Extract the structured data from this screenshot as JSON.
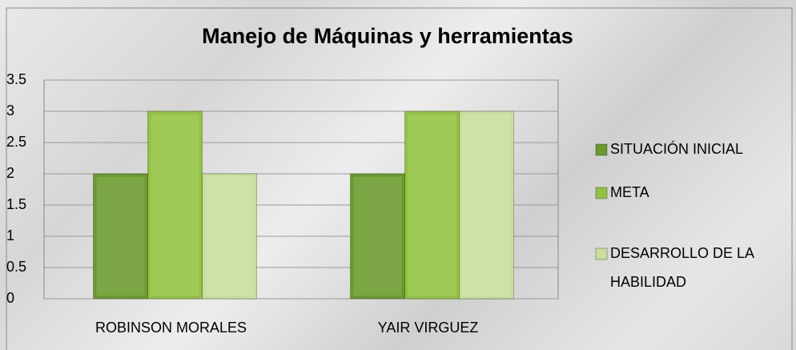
{
  "chart_data": {
    "type": "bar",
    "title": "Manejo de Máquinas y herramientas",
    "categories": [
      "ROBINSON  MORALES",
      "YAIR  VIRGUEZ"
    ],
    "series": [
      {
        "name": "SITUACIÓN INICIAL",
        "color": "#6a9a2c",
        "values": [
          2,
          2
        ]
      },
      {
        "name": "META",
        "color": "#92c340",
        "values": [
          3,
          3
        ]
      },
      {
        "name": "DESARROLLO DE LA HABILIDAD",
        "color": "#c8df9c",
        "values": [
          2,
          3
        ]
      }
    ],
    "ylim": [
      0,
      3.5
    ],
    "yticks": [
      0,
      0.5,
      1,
      1.5,
      2,
      2.5,
      3,
      3.5
    ],
    "grid": true,
    "legend": "right"
  }
}
